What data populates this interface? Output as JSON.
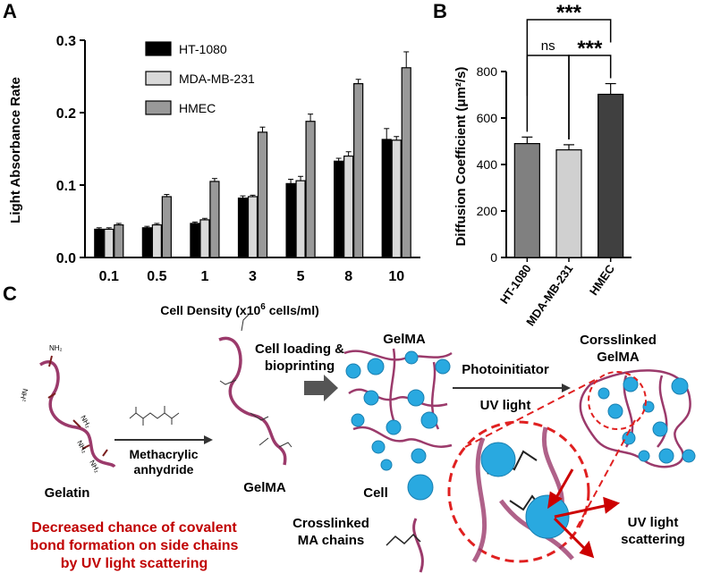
{
  "panels": {
    "a": "A",
    "b": "B",
    "c": "C"
  },
  "chart_data": [
    {
      "type": "bar",
      "panel": "A",
      "categories": [
        "0.1",
        "0.5",
        "1",
        "3",
        "5",
        "8",
        "10"
      ],
      "xlabel": "Cell Density (x10",
      "xlabel_sup": "6",
      "xlabel_tail": " cells/ml)",
      "ylabel": "Light Absorbance Rate",
      "ylim": [
        0,
        0.3
      ],
      "yticks": [
        "0.0",
        "0.1",
        "0.2",
        "0.3"
      ],
      "legend_position": "top-left",
      "series": [
        {
          "name": "HT-1080",
          "color": "#000000",
          "values": [
            0.039,
            0.041,
            0.047,
            0.082,
            0.102,
            0.133,
            0.163
          ],
          "errors": [
            0.002,
            0.002,
            0.002,
            0.003,
            0.006,
            0.004,
            0.015
          ]
        },
        {
          "name": "MDA-MB-231",
          "color": "#d9d9d9",
          "values": [
            0.039,
            0.045,
            0.052,
            0.084,
            0.106,
            0.14,
            0.162
          ],
          "errors": [
            0.002,
            0.002,
            0.002,
            0.002,
            0.006,
            0.006,
            0.005
          ]
        },
        {
          "name": "HMEC",
          "color": "#999999",
          "values": [
            0.045,
            0.084,
            0.105,
            0.173,
            0.188,
            0.24,
            0.262
          ],
          "errors": [
            0.002,
            0.003,
            0.004,
            0.007,
            0.01,
            0.006,
            0.022
          ]
        }
      ]
    },
    {
      "type": "bar",
      "panel": "B",
      "categories": [
        "HT-1080",
        "MDA-MB-231",
        "HMEC"
      ],
      "values": [
        490,
        463,
        702
      ],
      "errors": [
        28,
        22,
        46
      ],
      "colors": [
        "#808080",
        "#d0d0d0",
        "#404040"
      ],
      "ylabel": "Diffusion Coefficient (μm²/s)",
      "ylim": [
        0,
        800
      ],
      "yticks": [
        "0",
        "200",
        "400",
        "600",
        "800"
      ],
      "significance": [
        {
          "from": "HT-1080",
          "to": "HMEC",
          "label": "***"
        },
        {
          "from": "HT-1080",
          "to": "MDA-MB-231",
          "label": "ns"
        },
        {
          "from": "MDA-MB-231",
          "to": "HMEC",
          "label": "***"
        }
      ]
    }
  ],
  "schematic": {
    "gelatin": "Gelatin",
    "reagent": "Methacrylic anhydride",
    "reagent_line1": "Methacrylic",
    "reagent_line2": "anhydride",
    "gelma": "GelMA",
    "loading_line1": "Cell loading &",
    "loading_line2": "bioprinting",
    "gelma_top": "GelMA",
    "cell": "Cell",
    "crosslinked_line1": "Crosslinked",
    "crosslinked_line2": "MA chains",
    "photoinitiator": "Photoinitiator",
    "uv_light": "UV light",
    "corsslinked_line1": "Corsslinked",
    "corsslinked_line2": "GelMA",
    "scatter_line1": "UV light",
    "scatter_line2": "scattering",
    "note_line1": "Decreased chance of covalent",
    "note_line2": "bond formation on side chains",
    "note_line3": "by UV light scattering",
    "nh2": "NH₂",
    "h2n": "₂HN",
    "colors": {
      "chain": "#9b3a6b",
      "cell": "#29a9e0",
      "note": "#c00000",
      "dash": "#e02020"
    }
  }
}
